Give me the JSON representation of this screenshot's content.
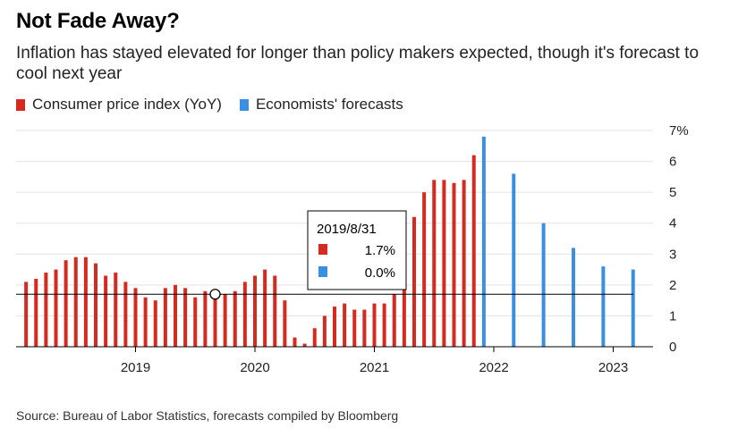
{
  "title": "Not Fade Away?",
  "subtitle": "Inflation has stayed elevated for longer than policy makers expected, though it's forecast to cool next year",
  "source": "Source: Bureau of Labor Statistics, forecasts compiled by Bloomberg",
  "colors": {
    "cpi": "#d42a20",
    "forecast": "#3b8fe0"
  },
  "chart_data": {
    "type": "bar",
    "series": [
      {
        "name": "Consumer price index (YoY)",
        "color": "#d42a20",
        "points": [
          [
            "2018-02",
            2.1
          ],
          [
            "2018-03",
            2.2
          ],
          [
            "2018-04",
            2.4
          ],
          [
            "2018-05",
            2.5
          ],
          [
            "2018-06",
            2.8
          ],
          [
            "2018-07",
            2.9
          ],
          [
            "2018-08",
            2.9
          ],
          [
            "2018-09",
            2.7
          ],
          [
            "2018-10",
            2.3
          ],
          [
            "2018-11",
            2.4
          ],
          [
            "2018-12",
            2.1
          ],
          [
            "2019-01",
            1.9
          ],
          [
            "2019-02",
            1.6
          ],
          [
            "2019-03",
            1.5
          ],
          [
            "2019-04",
            1.9
          ],
          [
            "2019-05",
            2.0
          ],
          [
            "2019-06",
            1.9
          ],
          [
            "2019-07",
            1.6
          ],
          [
            "2019-08",
            1.8
          ],
          [
            "2019-09",
            1.7
          ],
          [
            "2019-10",
            1.7
          ],
          [
            "2019-11",
            1.8
          ],
          [
            "2019-12",
            2.1
          ],
          [
            "2020-01",
            2.3
          ],
          [
            "2020-02",
            2.5
          ],
          [
            "2020-03",
            2.3
          ],
          [
            "2020-04",
            1.5
          ],
          [
            "2020-05",
            0.3
          ],
          [
            "2020-06",
            0.1
          ],
          [
            "2020-07",
            0.6
          ],
          [
            "2020-08",
            1.0
          ],
          [
            "2020-09",
            1.3
          ],
          [
            "2020-10",
            1.4
          ],
          [
            "2020-11",
            1.2
          ],
          [
            "2020-12",
            1.2
          ],
          [
            "2021-01",
            1.4
          ],
          [
            "2021-02",
            1.4
          ],
          [
            "2021-03",
            1.7
          ],
          [
            "2021-04",
            2.6
          ],
          [
            "2021-05",
            4.2
          ],
          [
            "2021-06",
            5.0
          ],
          [
            "2021-07",
            5.4
          ],
          [
            "2021-08",
            5.4
          ],
          [
            "2021-09",
            5.3
          ],
          [
            "2021-10",
            5.4
          ],
          [
            "2021-11",
            6.2
          ]
        ]
      },
      {
        "name": "Economists' forecasts",
        "color": "#3b8fe0",
        "points": [
          [
            "2021-12",
            6.8
          ],
          [
            "2022-03",
            5.6
          ],
          [
            "2022-06",
            4.0
          ],
          [
            "2022-09",
            3.2
          ],
          [
            "2022-12",
            2.6
          ],
          [
            "2023-03",
            2.5
          ]
        ]
      }
    ],
    "x_tick_labels": [
      "2019",
      "2020",
      "2021",
      "2022",
      "2023"
    ],
    "y_tick_labels": [
      "0",
      "1",
      "2",
      "3",
      "4",
      "5",
      "6",
      "7%"
    ],
    "y_ticks": [
      0,
      1,
      2,
      3,
      4,
      5,
      6,
      7
    ],
    "ylim": [
      0,
      7
    ],
    "x_range": [
      "2018-01",
      "2023-05"
    ],
    "reference_line": 1.7,
    "grid": true,
    "legend_position": "top-left",
    "tooltip": {
      "date": "2019/8/31",
      "at": "2019-09",
      "rows": [
        {
          "series": "cpi",
          "value": "1.7%"
        },
        {
          "series": "forecast",
          "value": "0.0%"
        }
      ]
    }
  }
}
